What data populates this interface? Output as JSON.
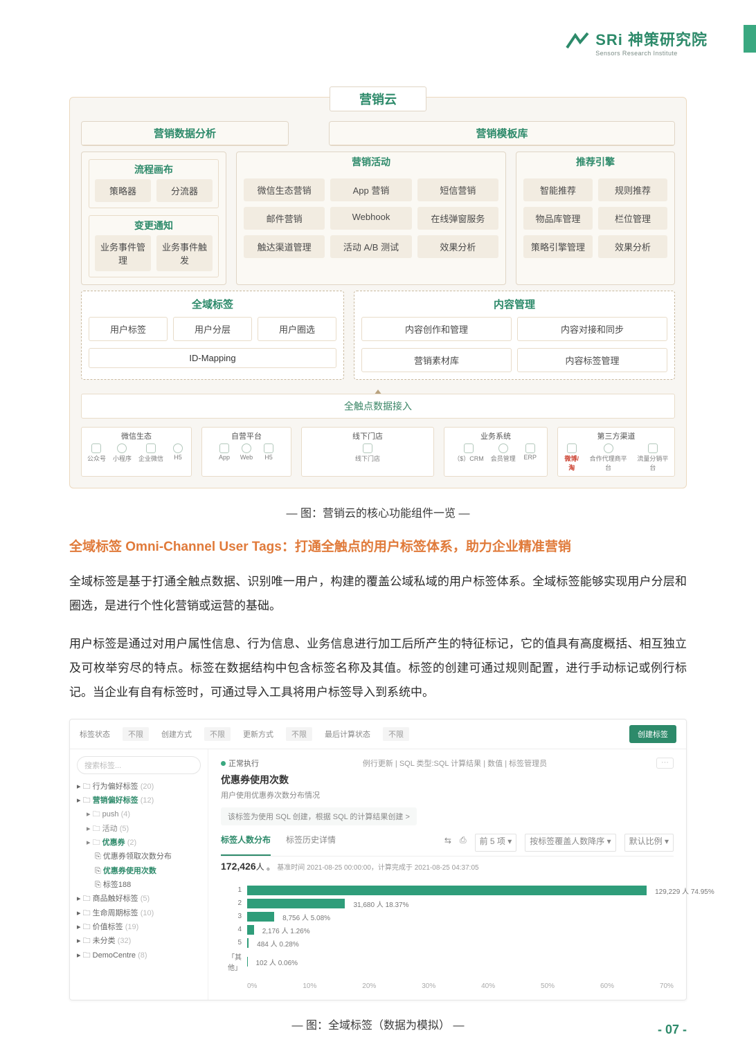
{
  "brand": {
    "name": "SRi 神策研究院",
    "sub": "Sensors Research Institute"
  },
  "page": "- 07 -",
  "diagram": {
    "title": "营销云",
    "top_left": "营销数据分析",
    "top_right": "营销模板库",
    "canvas": {
      "title": "流程画布",
      "cells": [
        "策略器",
        "分流器"
      ],
      "change": {
        "title": "变更通知",
        "cells": [
          "业务事件管理",
          "业务事件触发"
        ]
      }
    },
    "activity": {
      "title": "营销活动",
      "rows": [
        [
          "微信生态营销",
          "App 营销",
          "短信营销"
        ],
        [
          "邮件营销",
          "Webhook",
          "在线弹窗服务"
        ],
        [
          "触达渠道管理",
          "活动 A/B 测试",
          "效果分析"
        ]
      ]
    },
    "recommend": {
      "title": "推荐引擎",
      "rows": [
        [
          "智能推荐",
          "规则推荐"
        ],
        [
          "物品库管理",
          "栏位管理"
        ],
        [
          "策略引擎管理",
          "效果分析"
        ]
      ]
    },
    "omni": {
      "title": "全域标签",
      "row": [
        "用户标签",
        "用户分层",
        "用户圈选"
      ],
      "wide": "ID-Mapping"
    },
    "content": {
      "title": "内容管理",
      "row": [
        "内容创作和管理",
        "内容对接和同步"
      ],
      "row2": [
        "营销素材库",
        "内容标签管理"
      ]
    },
    "access": "全触点数据接入",
    "sources": [
      {
        "t": "微信生态",
        "items": [
          "公众号",
          "小程序",
          "企业微信",
          "H5"
        ]
      },
      {
        "t": "自营平台",
        "items": [
          "App",
          "Web",
          "H5"
        ]
      },
      {
        "t": "线下门店",
        "items": [
          "线下门店"
        ]
      },
      {
        "t": "业务系统",
        "items": [
          "（$）CRM",
          "会员管理",
          "ERP"
        ]
      },
      {
        "t": "第三方渠道",
        "items": [
          "微博/淘",
          "合作代理商平台",
          "流量分销平台"
        ]
      }
    ]
  },
  "caption1": "— 图：营销云的核心功能组件一览 —",
  "heading": "全域标签 Omni-Channel User Tags：打通全触点的用户标签体系，助力企业精准营销",
  "para1": "全域标签是基于打通全触点数据、识别唯一用户，构建的覆盖公域私域的用户标签体系。全域标签能够实现用户分层和圈选，是进行个性化营销或运营的基础。",
  "para2": "用户标签是通过对用户属性信息、行为信息、业务信息进行加工后所产生的特征标记，它的值具有高度概括、相互独立及可枚举穷尽的特点。标签在数据结构中包含标签名称及其值。标签的创建可通过规则配置，进行手动标记或例行标记。当企业有自有标签时，可通过导入工具将用户标签导入到系统中。",
  "shot": {
    "filters": [
      [
        "标签状态",
        "不限"
      ],
      [
        "创建方式",
        "不限"
      ],
      [
        "更新方式",
        "不限"
      ],
      [
        "最后计算状态",
        "不限"
      ]
    ],
    "new_btn": "创建标签",
    "search_ph": "搜索标签...",
    "tree": [
      {
        "l": "行为偏好标签",
        "c": "(20)"
      },
      {
        "l": "营销偏好标签",
        "c": "(12)",
        "on": true
      },
      {
        "l": "push",
        "c": "(4)",
        "sub": true
      },
      {
        "l": "活动",
        "c": "(5)",
        "sub": true
      },
      {
        "l": "优惠券",
        "c": "(2)",
        "sub": true,
        "on": true
      },
      {
        "l": "优惠券领取次数分布",
        "sub2": true
      },
      {
        "l": "优惠券使用次数",
        "sub2": true,
        "on": true
      },
      {
        "l": "标签188",
        "sub2": true
      },
      {
        "l": "商品触好标签",
        "c": "(5)"
      },
      {
        "l": "生命周期标签",
        "c": "(10)"
      },
      {
        "l": "价值标签",
        "c": "(19)"
      },
      {
        "l": "未分类",
        "c": "(32)"
      },
      {
        "l": "DemoCentre",
        "c": "(8)"
      }
    ],
    "status": "正常执行",
    "status_right": [
      "例行更新",
      "SQL 类型:SQL 计算结果",
      "数值",
      "标签管理员"
    ],
    "title": "优惠券使用次数",
    "desc": "用户使用优惠券次数分布情况",
    "hint": "该标签为使用 SQL 创建，根据 SQL 的计算结果创建   >",
    "tab_active": "标签人数分布",
    "tab_other": "标签历史详情",
    "tool": {
      "left": "",
      "right": [
        "前 5 项 ▾",
        "按标签覆盖人数降序 ▾",
        "默认比例 ▾"
      ]
    },
    "total": "172,426",
    "total_unit": "人 。",
    "ts": "基准时间 2021-08-25 00:00:00，计算完成于 2021-08-25 04:37:05",
    "bars": [
      {
        "k": "1",
        "v": 129229,
        "pct": 74.95,
        "label": "129,229 人 74.95%"
      },
      {
        "k": "2",
        "v": 31680,
        "pct": 18.37,
        "label": "31,680 人 18.37%"
      },
      {
        "k": "3",
        "v": 8756,
        "pct": 5.08,
        "label": "8,756 人 5.08%"
      },
      {
        "k": "4",
        "v": 2176,
        "pct": 1.26,
        "label": "2,176 人 1.26%"
      },
      {
        "k": "5",
        "v": 484,
        "pct": 0.28,
        "label": "484 人 0.28%"
      },
      {
        "k": "「其他」",
        "v": 102,
        "pct": 0.06,
        "label": "102 人 0.06%"
      }
    ],
    "xaxis": [
      "0%",
      "10%",
      "20%",
      "30%",
      "40%",
      "50%",
      "60%",
      "70%"
    ],
    "bar_color": "#2f9d7a"
  },
  "caption2": "— 图：全域标签（数据为模拟） —"
}
